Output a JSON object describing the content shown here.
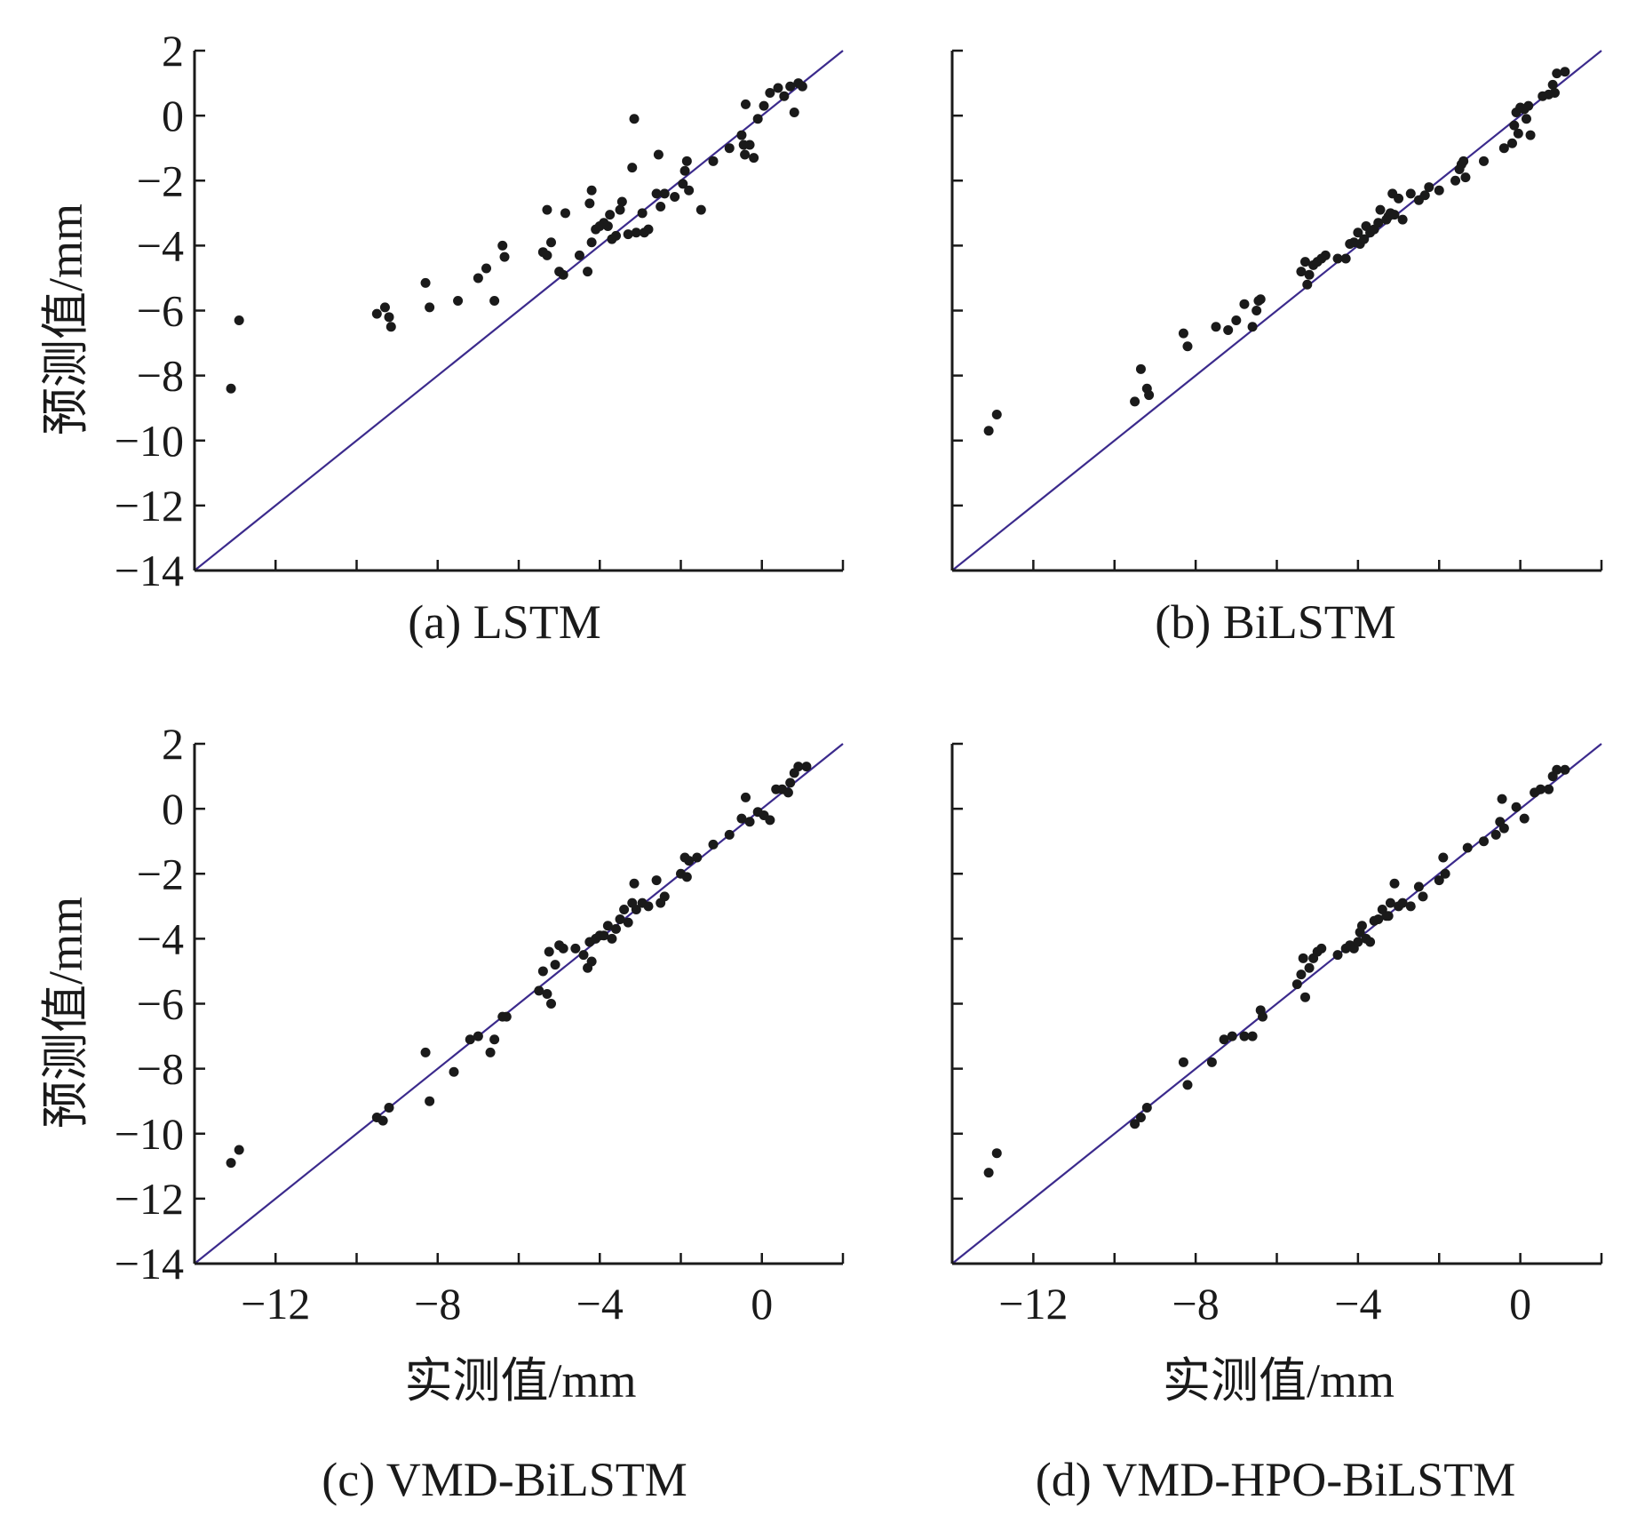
{
  "axes": {
    "x_title": "实测值/mm",
    "y_title": "预测值/mm",
    "x_ticks": [
      "−12",
      "−8",
      "−4",
      "0"
    ],
    "y_ticks": [
      "2",
      "0",
      "−2",
      "−4",
      "−6",
      "−8",
      "−10",
      "−12",
      "−14"
    ]
  },
  "colors": {
    "points": "#1a1a1a",
    "reference_line": "#3b2a8c",
    "axis": "#1a1a1a"
  },
  "chart_data": [
    {
      "type": "scatter",
      "caption": "(a) LSTM",
      "xlabel": "",
      "ylabel": "预测值/mm",
      "xlim": [
        -14,
        2
      ],
      "ylim": [
        -14,
        2
      ],
      "x_ticks": [],
      "y_ticks": [
        2,
        0,
        -2,
        -4,
        -6,
        -8,
        -10,
        -12,
        -14
      ],
      "reference_line": "y = x",
      "points": [
        [
          -13.1,
          -8.4
        ],
        [
          -12.9,
          -6.3
        ],
        [
          -9.5,
          -6.1
        ],
        [
          -9.3,
          -5.9
        ],
        [
          -9.2,
          -6.2
        ],
        [
          -9.15,
          -6.5
        ],
        [
          -8.3,
          -5.15
        ],
        [
          -8.2,
          -5.9
        ],
        [
          -7.5,
          -5.7
        ],
        [
          -7.0,
          -5.0
        ],
        [
          -6.8,
          -4.7
        ],
        [
          -6.6,
          -5.7
        ],
        [
          -6.4,
          -4.0
        ],
        [
          -6.35,
          -4.35
        ],
        [
          -5.4,
          -4.2
        ],
        [
          -5.3,
          -2.9
        ],
        [
          -5.3,
          -4.3
        ],
        [
          -5.2,
          -3.9
        ],
        [
          -5.0,
          -4.8
        ],
        [
          -4.9,
          -4.9
        ],
        [
          -4.85,
          -3.0
        ],
        [
          -4.5,
          -4.3
        ],
        [
          -4.3,
          -4.8
        ],
        [
          -4.25,
          -2.7
        ],
        [
          -4.2,
          -2.3
        ],
        [
          -4.2,
          -3.9
        ],
        [
          -4.1,
          -3.5
        ],
        [
          -4.0,
          -3.4
        ],
        [
          -3.9,
          -3.3
        ],
        [
          -3.8,
          -3.4
        ],
        [
          -3.75,
          -3.05
        ],
        [
          -3.7,
          -3.8
        ],
        [
          -3.6,
          -3.7
        ],
        [
          -3.5,
          -2.9
        ],
        [
          -3.45,
          -2.65
        ],
        [
          -3.3,
          -3.65
        ],
        [
          -3.2,
          -1.6
        ],
        [
          -3.15,
          -0.1
        ],
        [
          -3.1,
          -3.6
        ],
        [
          -2.95,
          -3.0
        ],
        [
          -2.9,
          -3.6
        ],
        [
          -2.8,
          -3.5
        ],
        [
          -2.6,
          -2.4
        ],
        [
          -2.55,
          -1.2
        ],
        [
          -2.5,
          -2.8
        ],
        [
          -2.4,
          -2.4
        ],
        [
          -2.15,
          -2.5
        ],
        [
          -1.95,
          -2.1
        ],
        [
          -1.9,
          -1.7
        ],
        [
          -1.85,
          -1.4
        ],
        [
          -1.8,
          -2.3
        ],
        [
          -1.5,
          -2.9
        ],
        [
          -1.2,
          -1.4
        ],
        [
          -0.8,
          -1.0
        ],
        [
          -0.5,
          -0.6
        ],
        [
          -0.45,
          -0.9
        ],
        [
          -0.42,
          -1.2
        ],
        [
          -0.4,
          0.35
        ],
        [
          -0.3,
          -0.9
        ],
        [
          -0.2,
          -1.3
        ],
        [
          -0.1,
          -0.1
        ],
        [
          0.05,
          0.3
        ],
        [
          0.2,
          0.7
        ],
        [
          0.4,
          0.85
        ],
        [
          0.55,
          0.6
        ],
        [
          0.7,
          0.9
        ],
        [
          0.8,
          0.1
        ],
        [
          0.9,
          1.0
        ],
        [
          1.0,
          0.9
        ]
      ]
    },
    {
      "type": "scatter",
      "caption": "(b) BiLSTM",
      "xlabel": "",
      "ylabel": "",
      "xlim": [
        -14,
        2
      ],
      "ylim": [
        -14,
        2
      ],
      "x_ticks": [],
      "y_ticks": [],
      "reference_line": "y = x",
      "points": [
        [
          -13.1,
          -9.7
        ],
        [
          -12.9,
          -9.2
        ],
        [
          -9.5,
          -8.8
        ],
        [
          -9.35,
          -7.8
        ],
        [
          -9.2,
          -8.4
        ],
        [
          -9.15,
          -8.6
        ],
        [
          -8.3,
          -6.7
        ],
        [
          -8.2,
          -7.1
        ],
        [
          -7.5,
          -6.5
        ],
        [
          -7.2,
          -6.6
        ],
        [
          -7.0,
          -6.3
        ],
        [
          -6.8,
          -5.8
        ],
        [
          -6.6,
          -6.5
        ],
        [
          -6.5,
          -6.0
        ],
        [
          -6.45,
          -5.7
        ],
        [
          -6.4,
          -5.65
        ],
        [
          -5.4,
          -4.8
        ],
        [
          -5.3,
          -4.5
        ],
        [
          -5.25,
          -5.2
        ],
        [
          -5.2,
          -4.9
        ],
        [
          -5.1,
          -4.6
        ],
        [
          -5.0,
          -4.5
        ],
        [
          -4.9,
          -4.4
        ],
        [
          -4.8,
          -4.3
        ],
        [
          -4.5,
          -4.4
        ],
        [
          -4.3,
          -4.4
        ],
        [
          -4.2,
          -3.95
        ],
        [
          -4.1,
          -3.9
        ],
        [
          -4.0,
          -3.6
        ],
        [
          -3.95,
          -3.95
        ],
        [
          -3.85,
          -3.8
        ],
        [
          -3.8,
          -3.4
        ],
        [
          -3.7,
          -3.6
        ],
        [
          -3.6,
          -3.5
        ],
        [
          -3.5,
          -3.3
        ],
        [
          -3.45,
          -2.9
        ],
        [
          -3.3,
          -3.2
        ],
        [
          -3.25,
          -3.1
        ],
        [
          -3.2,
          -3.0
        ],
        [
          -3.15,
          -2.4
        ],
        [
          -3.1,
          -3.05
        ],
        [
          -3.0,
          -2.55
        ],
        [
          -2.9,
          -3.2
        ],
        [
          -2.7,
          -2.4
        ],
        [
          -2.5,
          -2.6
        ],
        [
          -2.35,
          -2.45
        ],
        [
          -2.25,
          -2.2
        ],
        [
          -2.0,
          -2.3
        ],
        [
          -1.6,
          -2.0
        ],
        [
          -1.5,
          -1.65
        ],
        [
          -1.45,
          -1.5
        ],
        [
          -1.4,
          -1.4
        ],
        [
          -1.35,
          -1.9
        ],
        [
          -0.9,
          -1.4
        ],
        [
          -0.4,
          -1.0
        ],
        [
          -0.2,
          -0.85
        ],
        [
          -0.15,
          -0.3
        ],
        [
          -0.1,
          0.1
        ],
        [
          -0.05,
          -0.55
        ],
        [
          0.0,
          0.25
        ],
        [
          0.1,
          0.2
        ],
        [
          0.15,
          -0.1
        ],
        [
          0.2,
          0.3
        ],
        [
          0.25,
          -0.6
        ],
        [
          0.55,
          0.6
        ],
        [
          0.7,
          0.65
        ],
        [
          0.8,
          0.95
        ],
        [
          0.85,
          0.7
        ],
        [
          0.9,
          1.3
        ],
        [
          1.1,
          1.35
        ]
      ]
    },
    {
      "type": "scatter",
      "caption": "(c) VMD-BiLSTM",
      "xlabel": "实测值/mm",
      "ylabel": "预测值/mm",
      "xlim": [
        -14,
        2
      ],
      "ylim": [
        -14,
        2
      ],
      "x_ticks": [
        -12,
        -8,
        -4,
        0
      ],
      "y_ticks": [
        2,
        0,
        -2,
        -4,
        -6,
        -8,
        -10,
        -12,
        -14
      ],
      "reference_line": "y = x",
      "points": [
        [
          -13.1,
          -10.9
        ],
        [
          -12.9,
          -10.5
        ],
        [
          -9.5,
          -9.5
        ],
        [
          -9.35,
          -9.6
        ],
        [
          -9.2,
          -9.2
        ],
        [
          -8.3,
          -7.5
        ],
        [
          -8.2,
          -9.0
        ],
        [
          -7.6,
          -8.1
        ],
        [
          -7.2,
          -7.1
        ],
        [
          -7.0,
          -7.0
        ],
        [
          -6.7,
          -7.5
        ],
        [
          -6.6,
          -7.1
        ],
        [
          -6.4,
          -6.4
        ],
        [
          -6.3,
          -6.4
        ],
        [
          -5.5,
          -5.6
        ],
        [
          -5.4,
          -5.0
        ],
        [
          -5.3,
          -5.7
        ],
        [
          -5.25,
          -4.4
        ],
        [
          -5.2,
          -6.0
        ],
        [
          -5.1,
          -4.8
        ],
        [
          -5.0,
          -4.2
        ],
        [
          -4.9,
          -4.3
        ],
        [
          -4.6,
          -4.3
        ],
        [
          -4.4,
          -4.5
        ],
        [
          -4.3,
          -4.9
        ],
        [
          -4.25,
          -4.1
        ],
        [
          -4.2,
          -4.7
        ],
        [
          -4.1,
          -4.0
        ],
        [
          -4.0,
          -3.9
        ],
        [
          -3.9,
          -3.9
        ],
        [
          -3.8,
          -3.6
        ],
        [
          -3.7,
          -4.0
        ],
        [
          -3.6,
          -3.7
        ],
        [
          -3.5,
          -3.4
        ],
        [
          -3.4,
          -3.1
        ],
        [
          -3.3,
          -3.5
        ],
        [
          -3.2,
          -2.9
        ],
        [
          -3.15,
          -2.3
        ],
        [
          -3.1,
          -3.1
        ],
        [
          -2.95,
          -2.9
        ],
        [
          -2.8,
          -3.0
        ],
        [
          -2.6,
          -2.2
        ],
        [
          -2.5,
          -2.9
        ],
        [
          -2.4,
          -2.7
        ],
        [
          -2.0,
          -2.0
        ],
        [
          -1.9,
          -1.5
        ],
        [
          -1.85,
          -2.1
        ],
        [
          -1.8,
          -1.6
        ],
        [
          -1.6,
          -1.5
        ],
        [
          -1.2,
          -1.1
        ],
        [
          -0.8,
          -0.8
        ],
        [
          -0.5,
          -0.3
        ],
        [
          -0.4,
          0.35
        ],
        [
          -0.3,
          -0.4
        ],
        [
          -0.1,
          -0.1
        ],
        [
          0.05,
          -0.2
        ],
        [
          0.2,
          -0.35
        ],
        [
          0.35,
          0.6
        ],
        [
          0.5,
          0.6
        ],
        [
          0.65,
          0.5
        ],
        [
          0.7,
          0.8
        ],
        [
          0.8,
          1.1
        ],
        [
          0.9,
          1.3
        ],
        [
          1.1,
          1.3
        ]
      ]
    },
    {
      "type": "scatter",
      "caption": "(d) VMD-HPO-BiLSTM",
      "xlabel": "实测值/mm",
      "ylabel": "",
      "xlim": [
        -14,
        2
      ],
      "ylim": [
        -14,
        2
      ],
      "x_ticks": [
        -12,
        -8,
        -4,
        0
      ],
      "y_ticks": [],
      "reference_line": "y = x",
      "points": [
        [
          -13.1,
          -11.2
        ],
        [
          -12.9,
          -10.6
        ],
        [
          -9.5,
          -9.7
        ],
        [
          -9.35,
          -9.5
        ],
        [
          -9.2,
          -9.2
        ],
        [
          -8.3,
          -7.8
        ],
        [
          -8.2,
          -8.5
        ],
        [
          -7.6,
          -7.8
        ],
        [
          -7.3,
          -7.1
        ],
        [
          -7.1,
          -7.0
        ],
        [
          -6.8,
          -7.0
        ],
        [
          -6.6,
          -7.0
        ],
        [
          -6.4,
          -6.2
        ],
        [
          -6.35,
          -6.4
        ],
        [
          -5.5,
          -5.4
        ],
        [
          -5.4,
          -5.1
        ],
        [
          -5.35,
          -4.6
        ],
        [
          -5.3,
          -5.8
        ],
        [
          -5.2,
          -4.9
        ],
        [
          -5.1,
          -4.6
        ],
        [
          -5.0,
          -4.4
        ],
        [
          -4.9,
          -4.3
        ],
        [
          -4.5,
          -4.5
        ],
        [
          -4.3,
          -4.3
        ],
        [
          -4.2,
          -4.2
        ],
        [
          -4.1,
          -4.3
        ],
        [
          -4.0,
          -4.1
        ],
        [
          -3.95,
          -3.8
        ],
        [
          -3.9,
          -3.6
        ],
        [
          -3.8,
          -4.0
        ],
        [
          -3.7,
          -4.1
        ],
        [
          -3.6,
          -3.45
        ],
        [
          -3.5,
          -3.4
        ],
        [
          -3.4,
          -3.1
        ],
        [
          -3.3,
          -3.3
        ],
        [
          -3.25,
          -3.3
        ],
        [
          -3.2,
          -2.9
        ],
        [
          -3.1,
          -2.3
        ],
        [
          -3.0,
          -3.0
        ],
        [
          -2.9,
          -2.9
        ],
        [
          -2.7,
          -3.0
        ],
        [
          -2.5,
          -2.4
        ],
        [
          -2.4,
          -2.7
        ],
        [
          -2.0,
          -2.2
        ],
        [
          -1.9,
          -1.5
        ],
        [
          -1.85,
          -2.0
        ],
        [
          -1.3,
          -1.2
        ],
        [
          -0.9,
          -1.0
        ],
        [
          -0.6,
          -0.8
        ],
        [
          -0.5,
          -0.4
        ],
        [
          -0.45,
          0.3
        ],
        [
          -0.4,
          -0.6
        ],
        [
          -0.1,
          0.05
        ],
        [
          0.1,
          -0.3
        ],
        [
          0.35,
          0.5
        ],
        [
          0.5,
          0.6
        ],
        [
          0.7,
          0.6
        ],
        [
          0.8,
          1.0
        ],
        [
          0.9,
          1.2
        ],
        [
          1.1,
          1.2
        ]
      ]
    }
  ]
}
